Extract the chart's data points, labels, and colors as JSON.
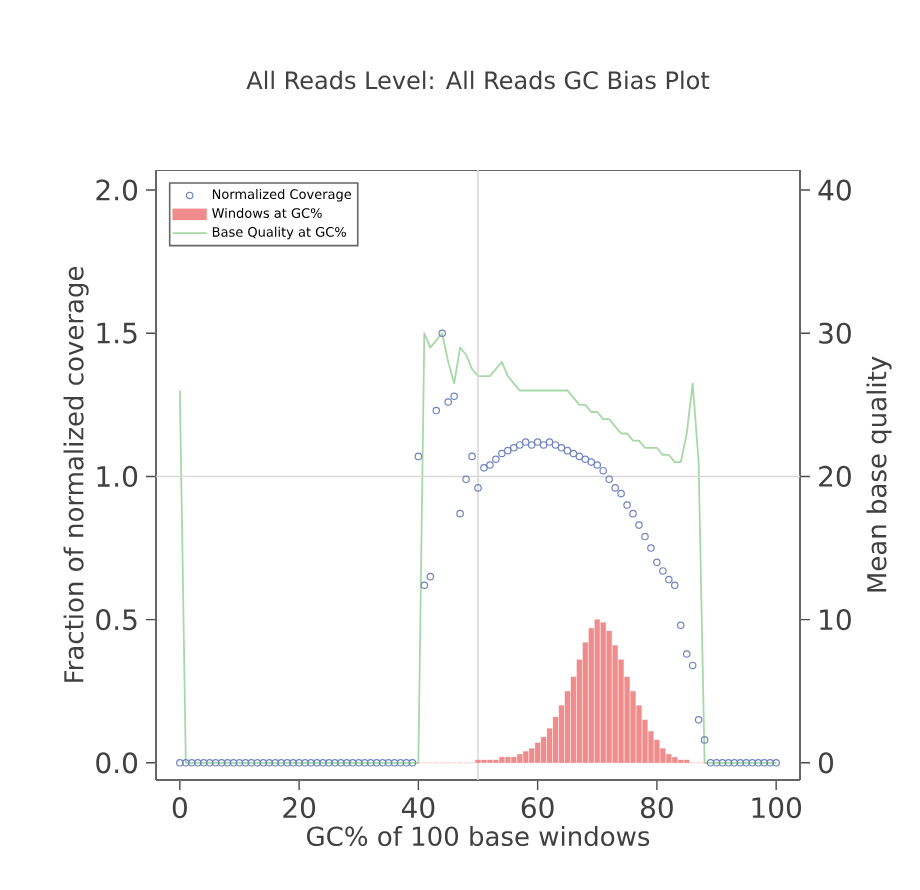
{
  "chart_data": {
    "type": "scatter",
    "title": "All Reads Level: All Reads GC Bias Plot",
    "xlabel": "GC% of 100 base windows",
    "ylabel": "Fraction of normalized coverage",
    "y2label": "Mean base quality",
    "xlim": [
      -4,
      104
    ],
    "xticks": [
      0,
      20,
      40,
      60,
      80,
      100
    ],
    "ylim": [
      -0.06,
      2.07
    ],
    "yticks": [
      {
        "value": 0,
        "label": "0.0"
      },
      0.5,
      {
        "value": 1,
        "label": "1.0"
      },
      1.5,
      {
        "value": 2,
        "label": "2.0"
      }
    ],
    "y2lim": [
      -1.2,
      41.4
    ],
    "y2ticks": [
      0,
      10,
      20,
      30,
      40
    ],
    "legend": "top left",
    "ref_lines": [
      {
        "axis": "x",
        "value": 50,
        "color": "#d8d8d8"
      },
      {
        "axis": "y",
        "value": 1.0,
        "color": "#d8d8d8"
      }
    ],
    "series": [
      {
        "name": "Normalized Coverage",
        "marker": "circle",
        "color": "#7084c0",
        "x": [
          0,
          1,
          2,
          3,
          4,
          5,
          6,
          7,
          8,
          9,
          10,
          11,
          12,
          13,
          14,
          15,
          16,
          17,
          18,
          19,
          20,
          21,
          22,
          23,
          24,
          25,
          26,
          27,
          28,
          29,
          30,
          31,
          32,
          33,
          34,
          35,
          36,
          37,
          38,
          39,
          40,
          41,
          42,
          43,
          44,
          45,
          46,
          47,
          48,
          49,
          50,
          51,
          52,
          53,
          54,
          55,
          56,
          57,
          58,
          59,
          60,
          61,
          62,
          63,
          64,
          65,
          66,
          67,
          68,
          69,
          70,
          71,
          72,
          73,
          74,
          75,
          76,
          77,
          78,
          79,
          80,
          81,
          82,
          83,
          84,
          85,
          86,
          87,
          88,
          89,
          90,
          91,
          92,
          93,
          94,
          95,
          96,
          97,
          98,
          99,
          100
        ],
        "values": [
          0,
          0,
          0,
          0,
          0,
          0,
          0,
          0,
          0,
          0,
          0,
          0,
          0,
          0,
          0,
          0,
          0,
          0,
          0,
          0,
          0,
          0,
          0,
          0,
          0,
          0,
          0,
          0,
          0,
          0,
          0,
          0,
          0,
          0,
          0,
          0,
          0,
          0,
          0,
          0,
          1.07,
          0.62,
          0.65,
          1.23,
          1.5,
          1.26,
          1.28,
          0.87,
          0.99,
          1.07,
          0.96,
          1.03,
          1.04,
          1.06,
          1.08,
          1.09,
          1.1,
          1.11,
          1.12,
          1.11,
          1.12,
          1.11,
          1.12,
          1.11,
          1.1,
          1.09,
          1.08,
          1.07,
          1.06,
          1.05,
          1.04,
          1.02,
          0.99,
          0.96,
          0.94,
          0.9,
          0.87,
          0.83,
          0.79,
          0.75,
          0.7,
          0.67,
          0.64,
          0.62,
          0.48,
          0.38,
          0.34,
          0.15,
          0.08,
          0,
          0,
          0,
          0,
          0,
          0,
          0,
          0,
          0,
          0,
          0,
          0
        ]
      },
      {
        "name": "Windows at GC%",
        "type": "bar",
        "color": "#f08c8c",
        "x": [
          40,
          41,
          42,
          43,
          44,
          45,
          46,
          47,
          48,
          49,
          50,
          51,
          52,
          53,
          54,
          55,
          56,
          57,
          58,
          59,
          60,
          61,
          62,
          63,
          64,
          65,
          66,
          67,
          68,
          69,
          70,
          71,
          72,
          73,
          74,
          75,
          76,
          77,
          78,
          79,
          80,
          81,
          82,
          83,
          84,
          85,
          86,
          87,
          88
        ],
        "values": [
          0,
          0,
          0,
          0,
          0,
          0,
          0,
          0,
          0,
          0,
          0.01,
          0.01,
          0.01,
          0.01,
          0.02,
          0.02,
          0.02,
          0.03,
          0.04,
          0.05,
          0.07,
          0.09,
          0.12,
          0.16,
          0.2,
          0.25,
          0.3,
          0.36,
          0.42,
          0.47,
          0.5,
          0.49,
          0.46,
          0.41,
          0.36,
          0.3,
          0.25,
          0.2,
          0.15,
          0.11,
          0.08,
          0.05,
          0.03,
          0.02,
          0.01,
          0.01,
          0,
          0,
          0
        ]
      },
      {
        "name": "Base Quality at GC%",
        "type": "line",
        "axis": "y2",
        "color": "#a6d9a6",
        "x": [
          0,
          1,
          40,
          41,
          42,
          43,
          44,
          45,
          46,
          47,
          48,
          49,
          50,
          51,
          52,
          53,
          54,
          55,
          56,
          57,
          58,
          59,
          60,
          61,
          62,
          63,
          64,
          65,
          66,
          67,
          68,
          69,
          70,
          71,
          72,
          73,
          74,
          75,
          76,
          77,
          78,
          79,
          80,
          81,
          82,
          83,
          84,
          85,
          86,
          87,
          88,
          100
        ],
        "values": [
          26,
          0,
          0,
          30,
          29,
          29.5,
          30,
          28,
          26.5,
          29,
          28.5,
          27.5,
          27,
          27,
          27,
          27.5,
          28,
          27,
          26.5,
          26,
          26,
          26,
          26,
          26,
          26,
          26,
          26,
          26,
          25.5,
          25,
          25,
          24.5,
          24.5,
          24,
          24,
          23.5,
          23,
          23,
          22.5,
          22.5,
          22,
          22,
          22,
          21.5,
          21.5,
          21,
          21,
          23,
          26.5,
          21,
          0,
          0
        ]
      }
    ]
  }
}
